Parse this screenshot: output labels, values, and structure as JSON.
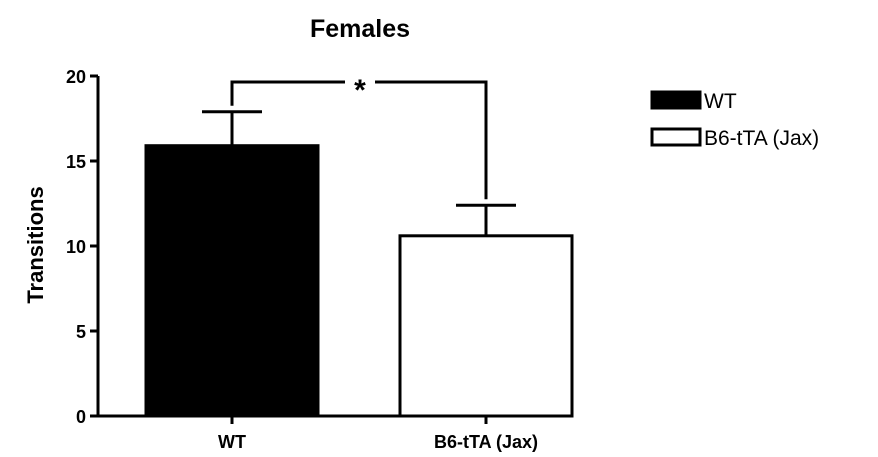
{
  "chart_data": {
    "type": "bar",
    "title": "Females",
    "ylabel": "Transitions",
    "xlabel": "",
    "categories": [
      "WT",
      "B6-tTA (Jax)"
    ],
    "series": [
      {
        "name": "",
        "values": [
          15.9,
          10.6
        ],
        "errors": [
          2.0,
          1.8
        ],
        "fills": [
          "#000000",
          "#ffffff"
        ],
        "strokes": [
          "#000000",
          "#000000"
        ]
      }
    ],
    "ylim": [
      0,
      20
    ],
    "yticks": [
      "0",
      "5",
      "10",
      "15",
      "20"
    ],
    "grid": false,
    "legend": {
      "position": "top-right",
      "entries": [
        {
          "label": "WT",
          "fill": "#000000"
        },
        {
          "label": "B6-tTA (Jax)",
          "fill": "#ffffff"
        }
      ]
    },
    "annotations": [
      {
        "text": "*",
        "type": "significance-bracket",
        "between": [
          "WT",
          "B6-tTA (Jax)"
        ]
      }
    ]
  }
}
